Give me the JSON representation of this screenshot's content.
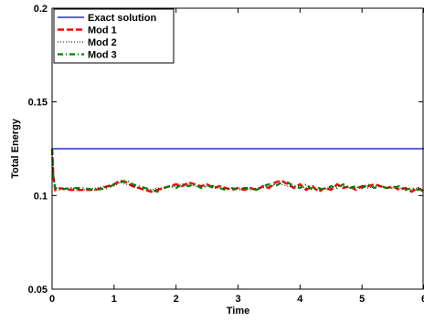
{
  "chart_data": {
    "type": "line",
    "title": "",
    "xlabel": "Time",
    "ylabel": "Total Energy",
    "xlim": [
      0,
      6
    ],
    "ylim": [
      0.05,
      0.2
    ],
    "xticks": [
      0,
      1,
      2,
      3,
      4,
      5,
      6
    ],
    "xtick_labels": [
      "0",
      "1",
      "2",
      "3",
      "4",
      "5",
      "6"
    ],
    "yticks": [
      0.05,
      0.1,
      0.15,
      0.2
    ],
    "ytick_labels": [
      "0.05",
      "0.1",
      "0.15",
      "0.2"
    ],
    "grid": false,
    "legend_position": "top-left",
    "series": [
      {
        "name": "Exact solution",
        "color": "#0000cc",
        "line_style": "solid",
        "x": [
          0,
          6
        ],
        "y": [
          0.125,
          0.125
        ]
      },
      {
        "name": "Mod 1",
        "color": "#ff0000",
        "line_style": "dashed",
        "x": [
          0,
          0.02,
          0.05,
          0.1,
          0.3,
          0.5,
          0.7,
          0.9,
          1.0,
          1.1,
          1.2,
          1.3,
          1.4,
          1.5,
          1.6,
          1.7,
          1.8,
          1.9,
          2.0,
          2.1,
          2.2,
          2.3,
          2.4,
          2.5,
          2.6,
          2.7,
          2.8,
          2.9,
          3.0,
          3.1,
          3.2,
          3.3,
          3.4,
          3.5,
          3.6,
          3.7,
          3.8,
          3.9,
          4.0,
          4.1,
          4.2,
          4.3,
          4.4,
          4.5,
          4.6,
          4.7,
          4.8,
          4.9,
          5.0,
          5.1,
          5.2,
          5.3,
          5.4,
          5.5,
          5.6,
          5.7,
          5.8,
          5.9,
          6.0
        ],
        "y": [
          0.125,
          0.11,
          0.103,
          0.104,
          0.103,
          0.103,
          0.103,
          0.105,
          0.106,
          0.108,
          0.107,
          0.105,
          0.104,
          0.103,
          0.102,
          0.103,
          0.104,
          0.105,
          0.106,
          0.105,
          0.107,
          0.106,
          0.105,
          0.106,
          0.104,
          0.105,
          0.104,
          0.103,
          0.104,
          0.103,
          0.104,
          0.103,
          0.105,
          0.104,
          0.107,
          0.108,
          0.106,
          0.104,
          0.106,
          0.103,
          0.105,
          0.102,
          0.104,
          0.103,
          0.106,
          0.104,
          0.105,
          0.103,
          0.105,
          0.105,
          0.106,
          0.105,
          0.104,
          0.105,
          0.103,
          0.104,
          0.102,
          0.104,
          0.102
        ]
      },
      {
        "name": "Mod 2",
        "color": "#000000",
        "line_style": "dotted",
        "x": [
          0,
          0.02,
          0.05,
          0.1,
          0.3,
          0.5,
          0.7,
          0.9,
          1.0,
          1.1,
          1.2,
          1.3,
          1.4,
          1.5,
          1.6,
          1.7,
          1.8,
          1.9,
          2.0,
          2.1,
          2.2,
          2.3,
          2.4,
          2.5,
          2.6,
          2.7,
          2.8,
          2.9,
          3.0,
          3.1,
          3.2,
          3.3,
          3.4,
          3.5,
          3.6,
          3.7,
          3.8,
          3.9,
          4.0,
          4.1,
          4.2,
          4.3,
          4.4,
          4.5,
          4.6,
          4.7,
          4.8,
          4.9,
          5.0,
          5.1,
          5.2,
          5.3,
          5.4,
          5.5,
          5.6,
          5.7,
          5.8,
          5.9,
          6.0
        ],
        "y": [
          0.125,
          0.111,
          0.104,
          0.104,
          0.104,
          0.103,
          0.104,
          0.105,
          0.105,
          0.107,
          0.106,
          0.105,
          0.104,
          0.104,
          0.103,
          0.104,
          0.104,
          0.105,
          0.105,
          0.106,
          0.106,
          0.105,
          0.105,
          0.105,
          0.104,
          0.104,
          0.104,
          0.104,
          0.104,
          0.104,
          0.103,
          0.104,
          0.104,
          0.105,
          0.106,
          0.106,
          0.105,
          0.105,
          0.105,
          0.104,
          0.104,
          0.103,
          0.104,
          0.104,
          0.105,
          0.105,
          0.104,
          0.104,
          0.105,
          0.104,
          0.105,
          0.105,
          0.104,
          0.104,
          0.104,
          0.104,
          0.103,
          0.104,
          0.103
        ]
      },
      {
        "name": "Mod 3",
        "color": "#008000",
        "line_style": "dashdot",
        "x": [
          0,
          0.02,
          0.05,
          0.1,
          0.3,
          0.5,
          0.7,
          0.9,
          1.0,
          1.1,
          1.2,
          1.3,
          1.4,
          1.5,
          1.6,
          1.7,
          1.8,
          1.9,
          2.0,
          2.1,
          2.2,
          2.3,
          2.4,
          2.5,
          2.6,
          2.7,
          2.8,
          2.9,
          3.0,
          3.1,
          3.2,
          3.3,
          3.4,
          3.5,
          3.6,
          3.7,
          3.8,
          3.9,
          4.0,
          4.1,
          4.2,
          4.3,
          4.4,
          4.5,
          4.6,
          4.7,
          4.8,
          4.9,
          5.0,
          5.1,
          5.2,
          5.3,
          5.4,
          5.5,
          5.6,
          5.7,
          5.8,
          5.9,
          6.0
        ],
        "y": [
          0.125,
          0.11,
          0.104,
          0.103,
          0.104,
          0.104,
          0.103,
          0.104,
          0.106,
          0.107,
          0.108,
          0.106,
          0.105,
          0.104,
          0.103,
          0.102,
          0.104,
          0.105,
          0.104,
          0.106,
          0.105,
          0.106,
          0.104,
          0.105,
          0.105,
          0.104,
          0.103,
          0.104,
          0.103,
          0.104,
          0.104,
          0.103,
          0.105,
          0.106,
          0.105,
          0.107,
          0.107,
          0.105,
          0.104,
          0.106,
          0.103,
          0.104,
          0.103,
          0.105,
          0.104,
          0.106,
          0.104,
          0.105,
          0.104,
          0.106,
          0.104,
          0.105,
          0.104,
          0.104,
          0.105,
          0.103,
          0.104,
          0.103,
          0.104
        ]
      }
    ]
  }
}
